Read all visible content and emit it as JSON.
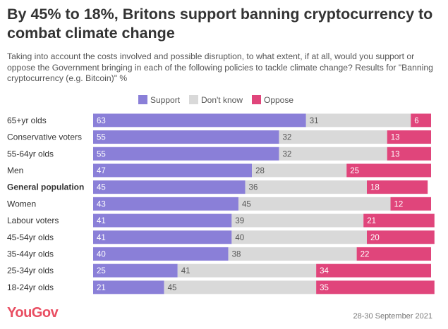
{
  "title": "By 45% to 18%, Britons support banning cryptocurrency to combat climate change",
  "subtitle": "Taking into account the costs involved and possible disruption, to what extent, if at all, would you support or oppose the Government bringing in each of the following policies to tackle climate change? Results for \"Banning cryptocurrency (e.g. Bitcoin)\" %",
  "legend": [
    {
      "label": "Support",
      "color": "#8a7fd8"
    },
    {
      "label": "Don't know",
      "color": "#d9d9d9"
    },
    {
      "label": "Oppose",
      "color": "#e0457b"
    }
  ],
  "brand": "YouGov",
  "date": "28-30 September 2021",
  "chart_data": {
    "type": "bar",
    "orientation": "horizontal",
    "stacked": true,
    "xlim": [
      0,
      100
    ],
    "bold_category": "General population",
    "categories": [
      "65+yr olds",
      "Conservative voters",
      "55-64yr olds",
      "Men",
      "General population",
      "Women",
      "Labour voters",
      "45-54yr olds",
      "35-44yr olds",
      "25-34yr olds",
      "18-24yr olds"
    ],
    "series": [
      {
        "name": "Support",
        "color": "#8a7fd8",
        "values": [
          63,
          55,
          55,
          47,
          45,
          43,
          41,
          41,
          40,
          25,
          21
        ]
      },
      {
        "name": "Don't know",
        "color": "#d9d9d9",
        "values": [
          31,
          32,
          32,
          28,
          36,
          45,
          39,
          40,
          38,
          41,
          45
        ]
      },
      {
        "name": "Oppose",
        "color": "#e0457b",
        "values": [
          6,
          13,
          13,
          25,
          18,
          12,
          21,
          20,
          22,
          34,
          35
        ]
      }
    ]
  }
}
